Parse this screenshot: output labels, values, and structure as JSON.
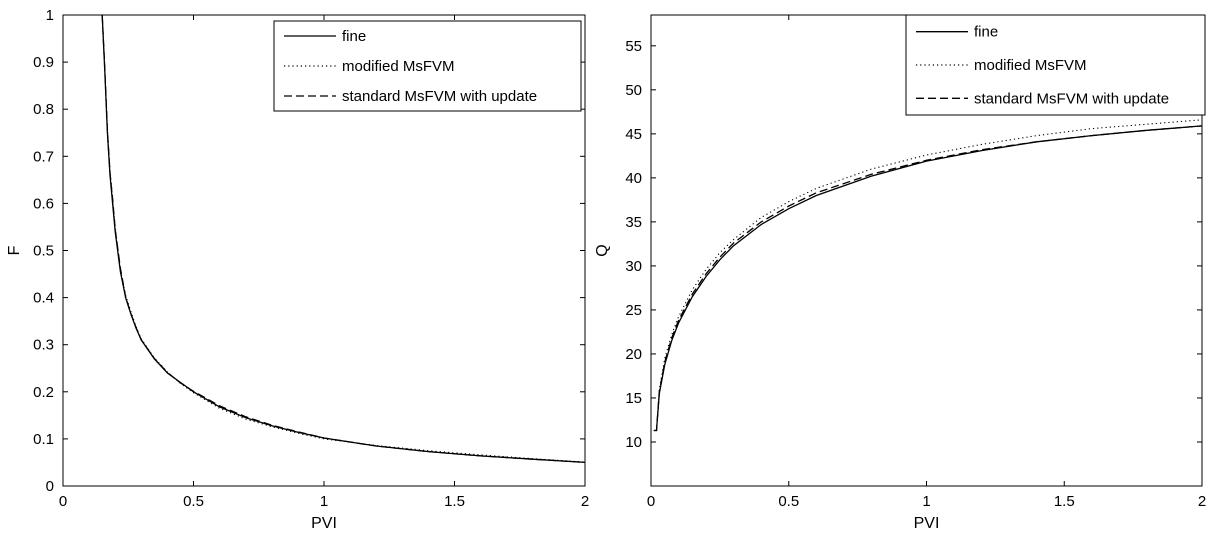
{
  "chart_data": [
    {
      "type": "line",
      "xlabel": "PVI",
      "ylabel": "F",
      "xlim": [
        0,
        2
      ],
      "ylim": [
        0,
        1
      ],
      "xticks": [
        "0",
        "0.5",
        "1",
        "1.5",
        "2"
      ],
      "yticks": [
        "0",
        "0.1",
        "0.2",
        "0.3",
        "0.4",
        "0.5",
        "0.6",
        "0.7",
        "0.8",
        "0.9",
        "1"
      ],
      "grid": false,
      "legend_position": "top-right",
      "series": [
        {
          "name": "fine",
          "style": "solid",
          "x": [
            0.15,
            0.16,
            0.17,
            0.18,
            0.19,
            0.2,
            0.22,
            0.24,
            0.26,
            0.28,
            0.3,
            0.35,
            0.4,
            0.45,
            0.5,
            0.6,
            0.7,
            0.8,
            0.9,
            1.0,
            1.2,
            1.4,
            1.6,
            1.8,
            2.0
          ],
          "y": [
            1.0,
            0.88,
            0.75,
            0.66,
            0.6,
            0.54,
            0.455,
            0.4,
            0.365,
            0.335,
            0.31,
            0.27,
            0.24,
            0.22,
            0.2,
            0.168,
            0.145,
            0.128,
            0.114,
            0.102,
            0.085,
            0.073,
            0.064,
            0.057,
            0.05
          ]
        },
        {
          "name": "modified MsFVM",
          "style": "dotted",
          "x": [
            0.15,
            0.16,
            0.17,
            0.18,
            0.19,
            0.2,
            0.22,
            0.24,
            0.26,
            0.28,
            0.3,
            0.35,
            0.4,
            0.45,
            0.5,
            0.6,
            0.7,
            0.8,
            0.9,
            1.0,
            1.2,
            1.4,
            1.6,
            1.8,
            2.0
          ],
          "y": [
            1.0,
            0.89,
            0.76,
            0.67,
            0.61,
            0.55,
            0.46,
            0.405,
            0.37,
            0.338,
            0.312,
            0.272,
            0.242,
            0.218,
            0.198,
            0.165,
            0.142,
            0.126,
            0.112,
            0.1,
            0.086,
            0.075,
            0.066,
            0.058,
            0.051
          ]
        },
        {
          "name": "standard MsFVM with update",
          "style": "dashed",
          "x": [
            0.15,
            0.16,
            0.17,
            0.18,
            0.19,
            0.2,
            0.22,
            0.24,
            0.26,
            0.28,
            0.3,
            0.35,
            0.4,
            0.45,
            0.5,
            0.6,
            0.7,
            0.8,
            0.9,
            1.0,
            1.2,
            1.4,
            1.6,
            1.8,
            2.0
          ],
          "y": [
            1.0,
            0.885,
            0.755,
            0.665,
            0.61,
            0.545,
            0.462,
            0.402,
            0.366,
            0.336,
            0.31,
            0.271,
            0.241,
            0.219,
            0.201,
            0.17,
            0.147,
            0.129,
            0.115,
            0.102,
            0.085,
            0.073,
            0.064,
            0.057,
            0.05
          ]
        }
      ]
    },
    {
      "type": "line",
      "xlabel": "PVI",
      "ylabel": "Q",
      "xlim": [
        0,
        2
      ],
      "ylim": [
        5,
        58.5
      ],
      "xticks": [
        "0",
        "0.5",
        "1",
        "1.5",
        "2"
      ],
      "yticks": [
        "10",
        "15",
        "20",
        "25",
        "30",
        "35",
        "40",
        "45",
        "50",
        "55"
      ],
      "grid": false,
      "legend_position": "top-right",
      "series": [
        {
          "name": "fine",
          "style": "solid",
          "x": [
            0.01,
            0.02,
            0.03,
            0.05,
            0.075,
            0.1,
            0.15,
            0.2,
            0.25,
            0.3,
            0.4,
            0.5,
            0.6,
            0.8,
            1.0,
            1.2,
            1.4,
            1.6,
            1.8,
            2.0
          ],
          "y": [
            11.3,
            11.3,
            15.5,
            18.8,
            21.5,
            23.5,
            26.5,
            28.8,
            30.7,
            32.3,
            34.7,
            36.5,
            38.0,
            40.2,
            41.9,
            43.1,
            44.1,
            44.8,
            45.4,
            45.9
          ]
        },
        {
          "name": "modified MsFVM",
          "style": "dotted",
          "x": [
            0.01,
            0.02,
            0.03,
            0.05,
            0.075,
            0.1,
            0.15,
            0.2,
            0.25,
            0.3,
            0.4,
            0.5,
            0.6,
            0.8,
            1.0,
            1.2,
            1.4,
            1.6,
            1.8,
            2.0
          ],
          "y": [
            11.3,
            11.3,
            16.0,
            19.5,
            22.2,
            24.2,
            27.3,
            29.6,
            31.5,
            33.0,
            35.5,
            37.3,
            38.8,
            41.0,
            42.6,
            43.8,
            44.8,
            45.6,
            46.1,
            46.6
          ]
        },
        {
          "name": "standard MsFVM with update",
          "style": "dashed",
          "x": [
            0.01,
            0.02,
            0.03,
            0.05,
            0.075,
            0.1,
            0.15,
            0.2,
            0.25,
            0.3,
            0.4,
            0.5,
            0.6,
            0.8,
            1.0,
            1.2,
            1.4,
            1.6,
            1.8,
            2.0
          ],
          "y": [
            11.3,
            11.3,
            15.7,
            19.1,
            21.8,
            23.8,
            26.8,
            29.1,
            31.0,
            32.6,
            35.0,
            36.8,
            38.3,
            40.4,
            42.0,
            43.2,
            44.1,
            44.8,
            45.4,
            45.9
          ]
        }
      ]
    }
  ]
}
